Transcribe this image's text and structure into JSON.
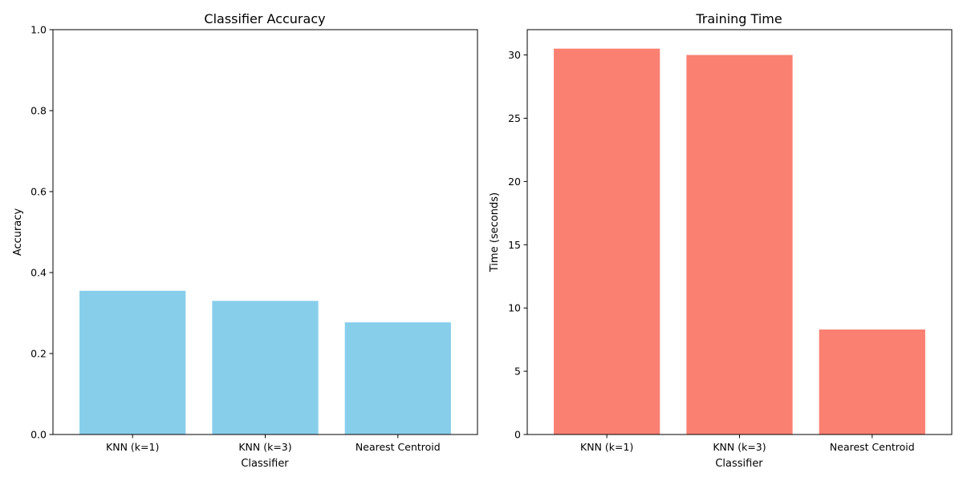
{
  "chart_data": [
    {
      "type": "bar",
      "title": "Classifier Accuracy",
      "xlabel": "Classifier",
      "ylabel": "Accuracy",
      "categories": [
        "KNN (k=1)",
        "KNN (k=3)",
        "Nearest Centroid"
      ],
      "values": [
        0.355,
        0.33,
        0.277
      ],
      "ylim": [
        0,
        1.0
      ],
      "yticks": [
        "0.0",
        "0.2",
        "0.4",
        "0.6",
        "0.8",
        "1.0"
      ],
      "ytick_values": [
        0,
        0.2,
        0.4,
        0.6,
        0.8,
        1.0
      ],
      "bar_color": "#87CEEB",
      "grid": false
    },
    {
      "type": "bar",
      "title": "Training Time",
      "xlabel": "Classifier",
      "ylabel": "Time (seconds)",
      "categories": [
        "KNN (k=1)",
        "KNN (k=3)",
        "Nearest Centroid"
      ],
      "values": [
        30.5,
        30.0,
        8.3
      ],
      "ylim": [
        0,
        32
      ],
      "yticks": [
        "0",
        "5",
        "10",
        "15",
        "20",
        "25",
        "30"
      ],
      "ytick_values": [
        0,
        5,
        10,
        15,
        20,
        25,
        30
      ],
      "bar_color": "#FA8072",
      "grid": false
    }
  ]
}
